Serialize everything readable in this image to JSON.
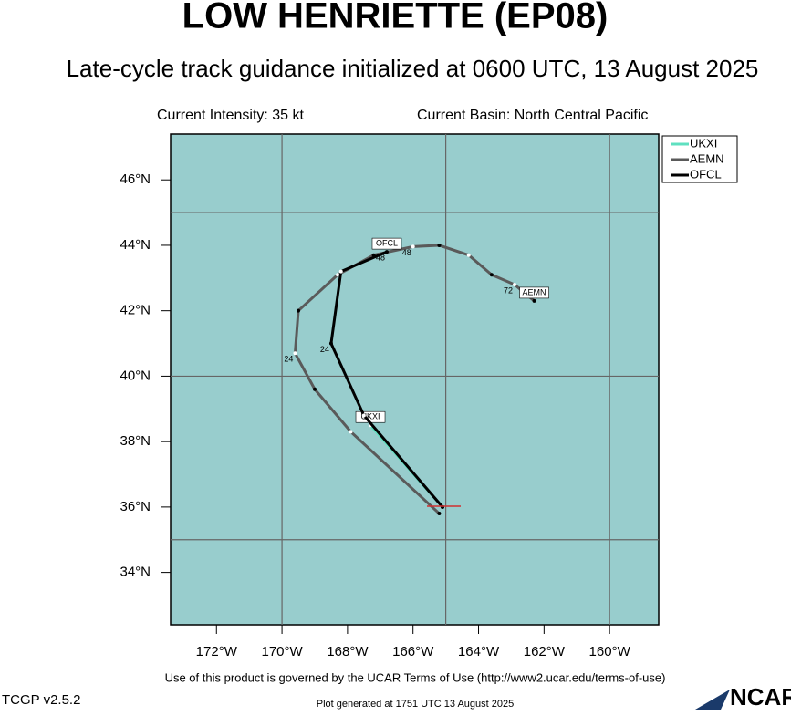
{
  "chart_data": {
    "type": "line",
    "title": "LOW HENRIETTE (EP08)",
    "subtitle": "Late-cycle track guidance initialized at 0600 UTC, 13 August 2025",
    "current_intensity": "Current Intensity: 35 kt",
    "current_basin": "Current Basin: North Central Pacific",
    "xlim": [
      -173.4,
      -158.5
    ],
    "ylim": [
      32.4,
      47.4
    ],
    "xticks": [
      {
        "value": -172,
        "label": "172°W"
      },
      {
        "value": -170,
        "label": "170°W"
      },
      {
        "value": -168,
        "label": "168°W"
      },
      {
        "value": -166,
        "label": "166°W"
      },
      {
        "value": -164,
        "label": "164°W"
      },
      {
        "value": -162,
        "label": "162°W"
      },
      {
        "value": -160,
        "label": "160°W"
      }
    ],
    "yticks": [
      {
        "value": 34,
        "label": "34°N"
      },
      {
        "value": 36,
        "label": "36°N"
      },
      {
        "value": 38,
        "label": "38°N"
      },
      {
        "value": 40,
        "label": "40°N"
      },
      {
        "value": 42,
        "label": "42°N"
      },
      {
        "value": 44,
        "label": "44°N"
      },
      {
        "value": 46,
        "label": "46°N"
      }
    ],
    "xgrid": [
      -170,
      -165,
      -160
    ],
    "ygrid": [
      35,
      40,
      45
    ],
    "background": "#98cdcd",
    "series": [
      {
        "name": "UKXI",
        "color": "#5fe0c0",
        "x": [
          -165.1,
          -167.3
        ],
        "values": [
          36.0,
          38.5
        ],
        "point_labels": [
          null,
          null
        ]
      },
      {
        "name": "AEMN",
        "color": "#5a5a5a",
        "x": [
          -165.2,
          -167.9,
          -169.0,
          -169.6,
          -169.5,
          -168.3,
          -167.2,
          -166.0,
          -165.2,
          -164.3,
          -163.6,
          -162.9,
          -162.3
        ],
        "values": [
          35.8,
          38.3,
          39.6,
          40.7,
          42.0,
          43.1,
          43.7,
          43.96,
          44.0,
          43.7,
          43.1,
          42.8,
          42.3
        ],
        "point_labels": [
          null,
          null,
          null,
          24,
          null,
          null,
          null,
          48,
          null,
          null,
          null,
          72,
          null
        ]
      },
      {
        "name": "OFCL",
        "color": "#000000",
        "x": [
          -165.1,
          -167.5,
          -168.5,
          -168.2,
          -166.8
        ],
        "values": [
          36.0,
          38.8,
          41.0,
          43.2,
          43.8
        ],
        "point_labels": [
          null,
          null,
          24,
          null,
          48
        ]
      }
    ],
    "footer": "Use of this product is governed by the UCAR Terms of Use (http://www2.ucar.edu/terms-of-use)",
    "version": "TCGP v2.5.2",
    "generated": "Plot generated at 1751 UTC   13 August 2025",
    "logo": "NCAR"
  }
}
